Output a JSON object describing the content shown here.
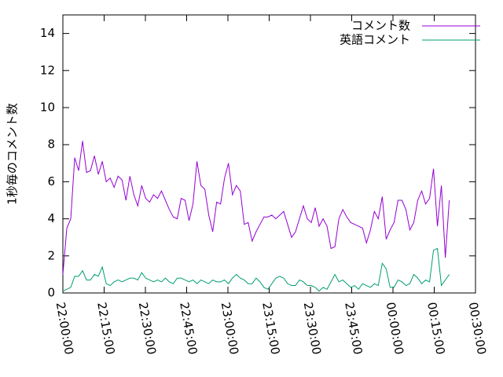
{
  "chart_data": {
    "type": "line",
    "ylabel": "1秒毎のコメント数",
    "x": [
      0,
      86,
      172,
      258,
      344,
      430,
      516,
      602,
      688,
      774,
      860,
      946,
      1032,
      1118,
      1204,
      1290,
      1376,
      1462,
      1548,
      1634,
      1720,
      1806,
      1892,
      1978,
      2064,
      2150,
      2236,
      2322,
      2408,
      2494,
      2580,
      2666,
      2752,
      2838,
      2924,
      3010,
      3096,
      3182,
      3268,
      3354,
      3440,
      3526,
      3612,
      3698,
      3784,
      3870,
      3956,
      4042,
      4128,
      4214,
      4300,
      4386,
      4472,
      4558,
      4644,
      4730,
      4816,
      4902,
      4988,
      5074,
      5160,
      5246,
      5332,
      5418,
      5504,
      5590,
      5676,
      5762,
      5848,
      5934,
      6020,
      6106,
      6192,
      6278,
      6364,
      6450,
      6536,
      6622,
      6708,
      6794,
      6880,
      6966,
      7052,
      7138,
      7224,
      7310,
      7396,
      7482,
      7568,
      7654,
      7740,
      7826,
      7912,
      7998,
      8084,
      8170,
      8256,
      8342,
      8428
    ],
    "series": [
      {
        "name": "コメント数",
        "color": "#9400d3",
        "values": [
          1.0,
          3.5,
          4.0,
          7.3,
          6.6,
          8.2,
          6.5,
          6.6,
          7.4,
          6.4,
          7.1,
          6.0,
          6.2,
          5.7,
          6.3,
          6.1,
          5.0,
          6.3,
          5.3,
          4.7,
          5.8,
          5.1,
          4.9,
          5.3,
          5.1,
          5.5,
          5.0,
          4.5,
          4.1,
          4.0,
          5.1,
          5.0,
          3.9,
          4.8,
          7.1,
          5.8,
          5.6,
          4.2,
          3.3,
          4.9,
          4.8,
          6.2,
          7.0,
          5.3,
          5.8,
          5.5,
          3.7,
          3.8,
          2.8,
          3.3,
          3.7,
          4.1,
          4.1,
          4.2,
          4.0,
          4.2,
          4.4,
          3.7,
          3.0,
          3.3,
          4.0,
          4.7,
          4.0,
          3.8,
          4.6,
          3.6,
          4.0,
          3.6,
          2.4,
          2.5,
          4.0,
          4.5,
          4.1,
          3.8,
          3.7,
          3.6,
          3.5,
          2.7,
          3.4,
          4.4,
          4.0,
          5.2,
          2.9,
          3.4,
          3.8,
          5.0,
          5.0,
          4.5,
          3.4,
          3.8,
          5.0,
          5.5,
          4.8,
          5.1,
          6.7,
          3.6,
          5.8,
          1.9,
          5.0
        ]
      },
      {
        "name": "英語コメント",
        "color": "#009e73",
        "values": [
          0.1,
          0.2,
          0.3,
          0.9,
          0.9,
          1.2,
          0.7,
          0.7,
          1.0,
          0.9,
          1.4,
          0.5,
          0.4,
          0.6,
          0.7,
          0.6,
          0.7,
          0.8,
          0.8,
          0.7,
          1.1,
          0.8,
          0.7,
          0.6,
          0.7,
          0.6,
          0.8,
          0.6,
          0.5,
          0.8,
          0.8,
          0.7,
          0.6,
          0.7,
          0.5,
          0.7,
          0.6,
          0.5,
          0.7,
          0.6,
          0.6,
          0.7,
          0.5,
          0.8,
          1.0,
          0.8,
          0.7,
          0.5,
          0.5,
          0.8,
          0.6,
          0.3,
          0.2,
          0.5,
          0.8,
          0.9,
          0.8,
          0.5,
          0.4,
          0.4,
          0.7,
          0.6,
          0.4,
          0.4,
          0.3,
          0.1,
          0.3,
          0.2,
          0.6,
          1.0,
          0.6,
          0.7,
          0.5,
          0.3,
          0.4,
          0.2,
          0.5,
          0.4,
          0.3,
          0.5,
          0.4,
          1.6,
          1.3,
          0.3,
          0.3,
          0.7,
          0.6,
          0.4,
          0.5,
          1.0,
          0.8,
          0.5,
          0.7,
          0.6,
          2.3,
          2.4,
          0.4,
          0.7,
          1.0
        ]
      }
    ],
    "xlim": [
      0,
      9000
    ],
    "xticks": [
      {
        "value": 0,
        "label": "22:00:00"
      },
      {
        "value": 900,
        "label": "22:15:00"
      },
      {
        "value": 1800,
        "label": "22:30:00"
      },
      {
        "value": 2700,
        "label": "22:45:00"
      },
      {
        "value": 3600,
        "label": "23:00:00"
      },
      {
        "value": 4500,
        "label": "23:15:00"
      },
      {
        "value": 5400,
        "label": "23:30:00"
      },
      {
        "value": 6300,
        "label": "23:45:00"
      },
      {
        "value": 7200,
        "label": "00:00:00"
      },
      {
        "value": 8100,
        "label": "00:15:00"
      },
      {
        "value": 9000,
        "label": "00:30:00"
      }
    ],
    "ylim": [
      0,
      15
    ],
    "yticks": [
      0,
      2,
      4,
      6,
      8,
      10,
      12,
      14
    ],
    "grid": false,
    "legend": "top-right"
  }
}
